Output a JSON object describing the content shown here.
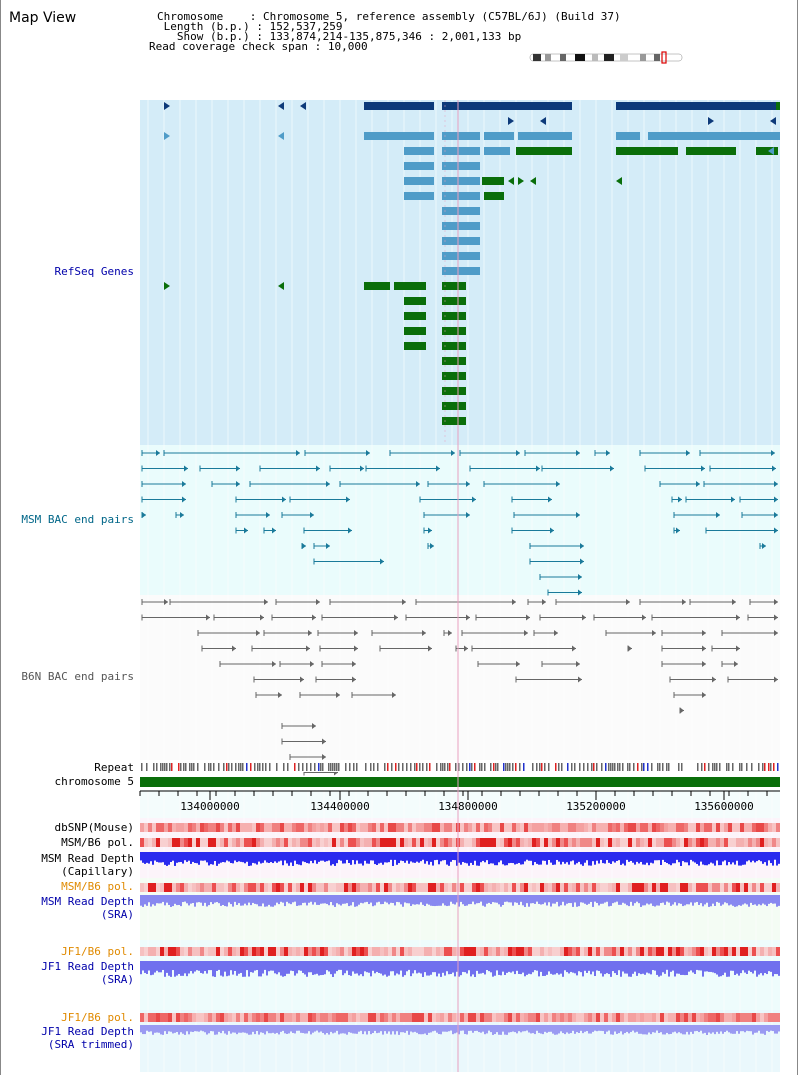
{
  "title": "Map View",
  "info": {
    "chromosome_label": "Chromosome",
    "chromosome_value": "Chromosome 5, reference assembly (C57BL/6J) (Build 37)",
    "length_label": "Length (b.p.)",
    "length_value": "152,537,259",
    "show_label": "Show (b.p.)",
    "show_value": "133,874,214-135,875,346 : 2,001,133 bp",
    "coverage_label": "Read coverage check span",
    "coverage_value": "10,000"
  },
  "tracks": {
    "refseq": "RefSeq Genes",
    "msm_bac": "MSM BAC end pairs",
    "b6n_bac": "B6N BAC end pairs",
    "repeat": "Repeat",
    "chromosome": "chromosome 5",
    "dbsnp": "dbSNP(Mouse)",
    "msm_b6_pol_1": "MSM/B6 pol.",
    "msm_depth_cap_1": "MSM Read Depth",
    "msm_depth_cap_2": "(Capillary)",
    "msm_b6_pol_2": "MSM/B6 pol.",
    "msm_depth_sra_1": "MSM Read Depth",
    "msm_depth_sra_2": "(SRA)",
    "jf1_b6_pol_1": "JF1/B6 pol.",
    "jf1_depth_sra_1": "JF1 Read Depth",
    "jf1_depth_sra_2": "(SRA)",
    "jf1_b6_pol_2": "JF1/B6 pol.",
    "jf1_depth_trim_1": "JF1 Read Depth",
    "jf1_depth_trim_2": "(SRA trimmed)"
  },
  "axis_ticks": [
    "134000000",
    "134400000",
    "134800000",
    "135200000",
    "135600000"
  ],
  "colors": {
    "refseq_bg": "#d4ecf8",
    "bac_bg": "#eafcfc",
    "gene_dark": "#0d3a7a",
    "gene_light": "#4f9cc8",
    "gene_green": "#0a6e0a",
    "msm_bac": "#1a7a9a",
    "b6n_bac": "#666666",
    "chromosome_bar": "#0a6e0a",
    "depth_blue": "#2a2aee",
    "depth_light": "#8888f0",
    "pol_red": "#f08080"
  }
}
